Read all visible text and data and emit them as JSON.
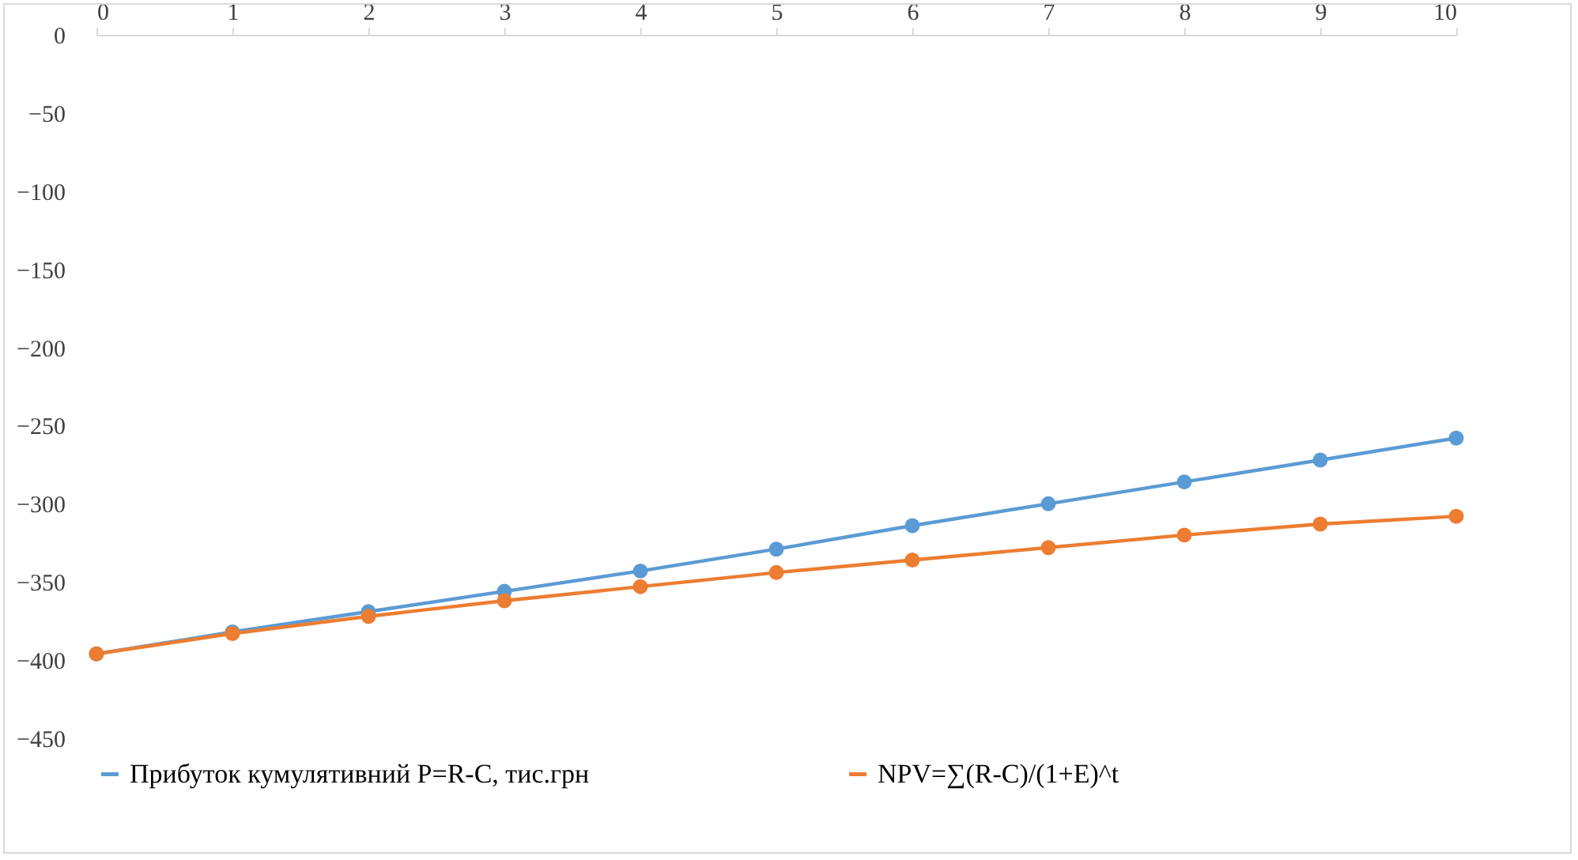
{
  "chart_data": {
    "type": "line",
    "x": [
      0,
      1,
      2,
      3,
      4,
      5,
      6,
      7,
      8,
      9,
      10
    ],
    "xlim": [
      0,
      10
    ],
    "xticks": [
      0,
      1,
      2,
      3,
      4,
      5,
      6,
      7,
      8,
      9,
      10
    ],
    "ylim": [
      -450,
      0
    ],
    "yticks": [
      -450,
      -400,
      -350,
      -300,
      -250,
      -200,
      -150,
      -100,
      -50,
      0
    ],
    "grid": false,
    "legend": "bottom",
    "marker": "circle",
    "line_style": "solid",
    "series": [
      {
        "name": "Прибуток кумулятивний   P=R-C, тис.грн",
        "color": "#5b9bd5",
        "values": [
          -396,
          -382,
          -369,
          -356,
          -343,
          -329,
          -314,
          -300,
          -286,
          -272,
          -258
        ]
      },
      {
        "name": "NPV=∑(R-C)/(1+E)^t",
        "color": "#ed7d31",
        "values": [
          -396,
          -383,
          -372,
          -362,
          -353,
          -344,
          -336,
          -328,
          -320,
          -313,
          -308
        ]
      }
    ]
  }
}
